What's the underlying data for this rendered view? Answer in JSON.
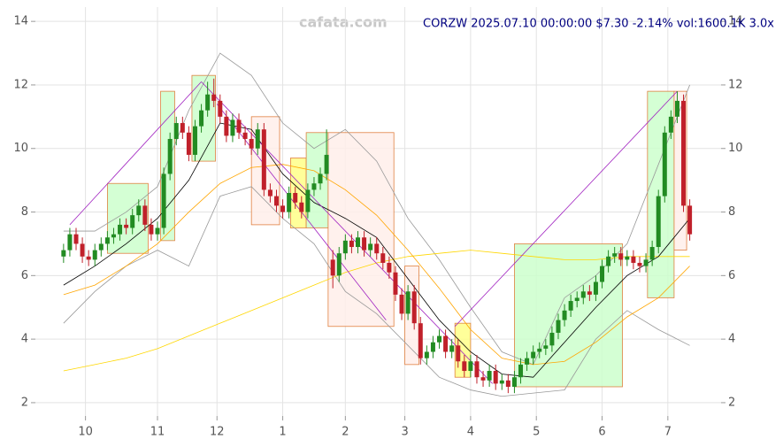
{
  "chart_data": {
    "type": "candlestick",
    "title": "CORZW 2025.07.10 00:00:00 $7.30 -2.14% vol:1600.1K 3.0x",
    "watermark": "cafata.com",
    "up_color": "#228b22",
    "down_color": "#c0202a",
    "x": [
      -7,
      -5,
      -3,
      -1,
      1,
      3,
      5,
      7,
      9,
      11,
      13,
      15,
      17,
      19,
      21,
      23,
      25,
      27,
      29,
      31,
      33,
      35,
      37,
      39,
      41,
      43,
      45,
      47,
      49,
      51,
      53,
      55,
      57,
      59,
      61,
      63,
      65,
      67,
      69,
      71,
      73,
      75,
      77,
      79,
      81,
      83,
      85,
      87,
      89,
      91,
      93,
      95,
      97,
      99,
      101,
      103,
      105,
      107,
      109,
      111,
      113,
      115,
      117,
      119,
      121,
      123,
      125,
      127,
      129,
      131,
      133,
      135,
      137,
      139,
      141,
      143,
      145,
      147,
      149,
      151,
      153,
      155,
      157,
      159,
      161,
      163,
      165,
      167,
      169,
      171,
      173,
      175,
      177,
      179,
      181,
      183,
      185,
      187,
      189,
      191,
      193
    ],
    "ohlc": [
      [
        6.6,
        7.0,
        6.4,
        6.8
      ],
      [
        6.8,
        7.5,
        6.6,
        7.3
      ],
      [
        7.3,
        7.5,
        6.8,
        7.0
      ],
      [
        7.0,
        7.2,
        6.4,
        6.6
      ],
      [
        6.6,
        6.8,
        6.3,
        6.5
      ],
      [
        6.5,
        7.0,
        6.3,
        6.8
      ],
      [
        6.8,
        7.2,
        6.6,
        7.0
      ],
      [
        7.0,
        7.4,
        6.8,
        7.2
      ],
      [
        7.2,
        7.5,
        7.0,
        7.3
      ],
      [
        7.3,
        7.8,
        7.1,
        7.6
      ],
      [
        7.6,
        7.8,
        7.3,
        7.5
      ],
      [
        7.5,
        8.1,
        7.3,
        7.9
      ],
      [
        7.9,
        8.4,
        7.7,
        8.2
      ],
      [
        8.2,
        8.4,
        7.4,
        7.6
      ],
      [
        7.6,
        7.8,
        7.1,
        7.3
      ],
      [
        7.3,
        7.7,
        7.1,
        7.5
      ],
      [
        7.5,
        9.4,
        7.3,
        9.2
      ],
      [
        9.2,
        10.5,
        9.0,
        10.3
      ],
      [
        10.3,
        11.0,
        10.1,
        10.8
      ],
      [
        10.8,
        11.0,
        10.3,
        10.5
      ],
      [
        10.5,
        10.7,
        9.6,
        9.8
      ],
      [
        9.8,
        10.9,
        9.6,
        10.7
      ],
      [
        10.7,
        11.4,
        10.5,
        11.2
      ],
      [
        11.2,
        12.1,
        11.0,
        11.7
      ],
      [
        11.7,
        12.2,
        11.3,
        11.5
      ],
      [
        11.5,
        11.7,
        10.8,
        11.0
      ],
      [
        11.0,
        11.2,
        10.2,
        10.4
      ],
      [
        10.4,
        11.1,
        10.2,
        10.9
      ],
      [
        10.9,
        11.1,
        10.3,
        10.5
      ],
      [
        10.5,
        10.7,
        10.1,
        10.3
      ],
      [
        10.3,
        10.5,
        9.8,
        10.0
      ],
      [
        10.0,
        10.8,
        9.8,
        10.6
      ],
      [
        10.6,
        10.8,
        8.5,
        8.7
      ],
      [
        8.7,
        8.9,
        8.3,
        8.5
      ],
      [
        8.5,
        8.7,
        8.0,
        8.2
      ],
      [
        8.2,
        8.4,
        7.8,
        8.0
      ],
      [
        8.0,
        8.8,
        7.8,
        8.6
      ],
      [
        8.6,
        8.8,
        8.1,
        8.3
      ],
      [
        8.3,
        8.5,
        7.8,
        8.0
      ],
      [
        8.0,
        8.9,
        7.8,
        8.7
      ],
      [
        8.7,
        9.1,
        8.5,
        8.9
      ],
      [
        8.9,
        9.4,
        8.7,
        9.2
      ],
      [
        9.2,
        10.6,
        9.0,
        9.8
      ],
      [
        6.5,
        6.8,
        5.6,
        6.0
      ],
      [
        6.0,
        6.9,
        5.8,
        6.7
      ],
      [
        6.7,
        7.3,
        6.5,
        7.1
      ],
      [
        7.1,
        7.3,
        6.7,
        6.9
      ],
      [
        6.9,
        7.4,
        6.7,
        7.2
      ],
      [
        7.2,
        7.4,
        6.6,
        6.8
      ],
      [
        6.8,
        7.2,
        6.6,
        7.0
      ],
      [
        7.0,
        7.2,
        6.5,
        6.7
      ],
      [
        6.7,
        6.9,
        6.2,
        6.4
      ],
      [
        6.4,
        6.6,
        5.9,
        6.1
      ],
      [
        6.1,
        6.3,
        5.2,
        5.4
      ],
      [
        5.4,
        5.6,
        4.6,
        4.8
      ],
      [
        4.8,
        5.7,
        4.6,
        5.5
      ],
      [
        5.5,
        5.7,
        4.3,
        4.5
      ],
      [
        4.5,
        4.7,
        3.2,
        3.4
      ],
      [
        3.4,
        3.8,
        3.2,
        3.6
      ],
      [
        3.6,
        4.1,
        3.4,
        3.9
      ],
      [
        3.9,
        4.3,
        3.7,
        4.1
      ],
      [
        4.1,
        4.3,
        3.4,
        3.6
      ],
      [
        3.6,
        4.0,
        3.4,
        3.8
      ],
      [
        3.8,
        4.0,
        3.1,
        3.3
      ],
      [
        3.3,
        3.5,
        2.8,
        3.0
      ],
      [
        3.0,
        3.5,
        2.8,
        3.3
      ],
      [
        3.3,
        3.5,
        2.6,
        2.8
      ],
      [
        2.8,
        3.0,
        2.5,
        2.7
      ],
      [
        2.7,
        3.2,
        2.5,
        3.0
      ],
      [
        3.0,
        3.2,
        2.4,
        2.6
      ],
      [
        2.6,
        2.9,
        2.4,
        2.7
      ],
      [
        2.7,
        2.9,
        2.3,
        2.5
      ],
      [
        2.5,
        3.0,
        2.3,
        2.8
      ],
      [
        2.8,
        3.4,
        2.6,
        3.2
      ],
      [
        3.2,
        3.6,
        3.0,
        3.4
      ],
      [
        3.4,
        3.8,
        3.2,
        3.6
      ],
      [
        3.6,
        3.9,
        3.4,
        3.7
      ],
      [
        3.7,
        4.0,
        3.5,
        3.8
      ],
      [
        3.8,
        4.4,
        3.6,
        4.2
      ],
      [
        4.2,
        4.8,
        4.0,
        4.6
      ],
      [
        4.6,
        5.1,
        4.4,
        4.9
      ],
      [
        4.9,
        5.4,
        4.7,
        5.2
      ],
      [
        5.2,
        5.5,
        5.0,
        5.3
      ],
      [
        5.3,
        5.7,
        5.1,
        5.5
      ],
      [
        5.5,
        5.7,
        5.2,
        5.4
      ],
      [
        5.4,
        6.0,
        5.2,
        5.8
      ],
      [
        5.8,
        6.5,
        5.6,
        6.3
      ],
      [
        6.3,
        6.8,
        6.1,
        6.6
      ],
      [
        6.6,
        6.9,
        6.4,
        6.7
      ],
      [
        6.7,
        6.9,
        6.3,
        6.5
      ],
      [
        6.5,
        6.8,
        6.3,
        6.6
      ],
      [
        6.6,
        6.8,
        6.2,
        6.4
      ],
      [
        6.4,
        6.6,
        6.1,
        6.3
      ],
      [
        6.3,
        6.7,
        6.1,
        6.5
      ],
      [
        6.5,
        7.1,
        6.3,
        6.9
      ],
      [
        6.9,
        8.7,
        6.7,
        8.5
      ],
      [
        8.5,
        10.7,
        8.3,
        10.5
      ],
      [
        10.5,
        11.2,
        10.3,
        11.0
      ],
      [
        11.0,
        11.8,
        10.8,
        11.5
      ],
      [
        11.5,
        11.7,
        8.0,
        8.2
      ],
      [
        8.2,
        8.4,
        7.1,
        7.3
      ]
    ],
    "line_x": [
      -7,
      3,
      13,
      23,
      33,
      43,
      53,
      63,
      73,
      83,
      93,
      103,
      113,
      123,
      133,
      143,
      153,
      163,
      173,
      183,
      193
    ],
    "lines": [
      {
        "color": "#999999",
        "values": [
          7.4,
          7.4,
          8.0,
          8.8,
          11.2,
          13.0,
          12.3,
          10.8,
          10.0,
          10.6,
          9.6,
          7.8,
          6.5,
          5.0,
          3.6,
          3.2,
          5.3,
          6.0,
          7.0,
          9.5,
          12.0
        ]
      },
      {
        "color": "#999999",
        "values": [
          4.5,
          5.5,
          6.3,
          6.8,
          6.3,
          8.5,
          8.8,
          7.8,
          7.0,
          5.5,
          4.8,
          3.8,
          2.8,
          2.4,
          2.2,
          2.3,
          2.4,
          4.0,
          4.9,
          4.3,
          3.8
        ]
      },
      {
        "color": "#ffd700",
        "values": [
          3.0,
          3.2,
          3.4,
          3.7,
          4.1,
          4.5,
          4.9,
          5.3,
          5.7,
          6.1,
          6.4,
          6.6,
          6.7,
          6.8,
          6.7,
          6.6,
          6.5,
          6.5,
          6.6,
          6.6,
          6.6
        ]
      },
      {
        "color": "#ffa500",
        "values": [
          5.4,
          5.7,
          6.3,
          7.0,
          8.0,
          8.9,
          9.4,
          9.5,
          9.3,
          8.7,
          7.9,
          6.8,
          5.6,
          4.3,
          3.4,
          3.2,
          3.3,
          3.9,
          4.7,
          5.3,
          6.3
        ]
      },
      {
        "color": "#000000",
        "values": [
          5.7,
          6.3,
          7.0,
          7.8,
          9.0,
          10.8,
          10.6,
          9.2,
          8.3,
          7.8,
          7.2,
          5.9,
          4.6,
          3.6,
          2.9,
          2.8,
          3.9,
          5.0,
          6.0,
          6.6,
          7.8
        ]
      }
    ],
    "boxes": [
      {
        "x": [
          7,
          20
        ],
        "y": [
          6.7,
          8.9
        ],
        "fill": "#ccffcc"
      },
      {
        "x": [
          24,
          28.5
        ],
        "y": [
          7.1,
          11.8
        ],
        "fill": "#ccffcc"
      },
      {
        "x": [
          34,
          41.5
        ],
        "y": [
          9.6,
          12.3
        ],
        "fill": "#ccffcc"
      },
      {
        "x": [
          53,
          62
        ],
        "y": [
          7.6,
          11.0
        ],
        "fill": "#ffeeea"
      },
      {
        "x": [
          65.5,
          70.5
        ],
        "y": [
          7.5,
          9.7
        ],
        "fill": "#ffff88"
      },
      {
        "x": [
          70.5,
          77.5
        ],
        "y": [
          7.5,
          10.5
        ],
        "fill": "#ccffcc"
      },
      {
        "x": [
          77.5,
          98.5
        ],
        "y": [
          4.4,
          10.5
        ],
        "fill": "#ffeeea"
      },
      {
        "x": [
          102,
          106.5
        ],
        "y": [
          3.2,
          6.3
        ],
        "fill": "#ffeeea"
      },
      {
        "x": [
          118,
          123
        ],
        "y": [
          2.8,
          4.5
        ],
        "fill": "#ffff88"
      },
      {
        "x": [
          137,
          171.5
        ],
        "y": [
          2.5,
          7.0
        ],
        "fill": "#ccffcc"
      },
      {
        "x": [
          179.5,
          188
        ],
        "y": [
          5.3,
          11.8
        ],
        "fill": "#ccffcc"
      },
      {
        "x": [
          188,
          192
        ],
        "y": [
          6.8,
          11.8
        ],
        "fill": "#ffeeea"
      }
    ],
    "box_border": "#e08040",
    "trend_color": "#a020c0",
    "trendlines": [
      {
        "x": [
          -5,
          37
        ],
        "y": [
          7.6,
          12.1
        ]
      },
      {
        "x": [
          37,
          130
        ],
        "y": [
          12.1,
          2.6
        ]
      },
      {
        "x": [
          42,
          96
        ],
        "y": [
          11.4,
          4.6
        ]
      },
      {
        "x": [
          118,
          189
        ],
        "y": [
          4.4,
          11.8
        ]
      }
    ],
    "xlim": [
      -16,
      203
    ],
    "xticks": [
      {
        "value": 0,
        "label": "10"
      },
      {
        "value": 23,
        "label": "11"
      },
      {
        "value": 42,
        "label": "12"
      },
      {
        "value": 63,
        "label": "1"
      },
      {
        "value": 83,
        "label": "2"
      },
      {
        "value": 102,
        "label": "3"
      },
      {
        "value": 123,
        "label": "4"
      },
      {
        "value": 144,
        "label": "5"
      },
      {
        "value": 165,
        "label": "6"
      },
      {
        "value": 186,
        "label": "7"
      }
    ],
    "ylim": [
      1.58,
      14.45
    ],
    "yticks": [
      2,
      4,
      6,
      8,
      10,
      12,
      14
    ],
    "grid": true
  }
}
